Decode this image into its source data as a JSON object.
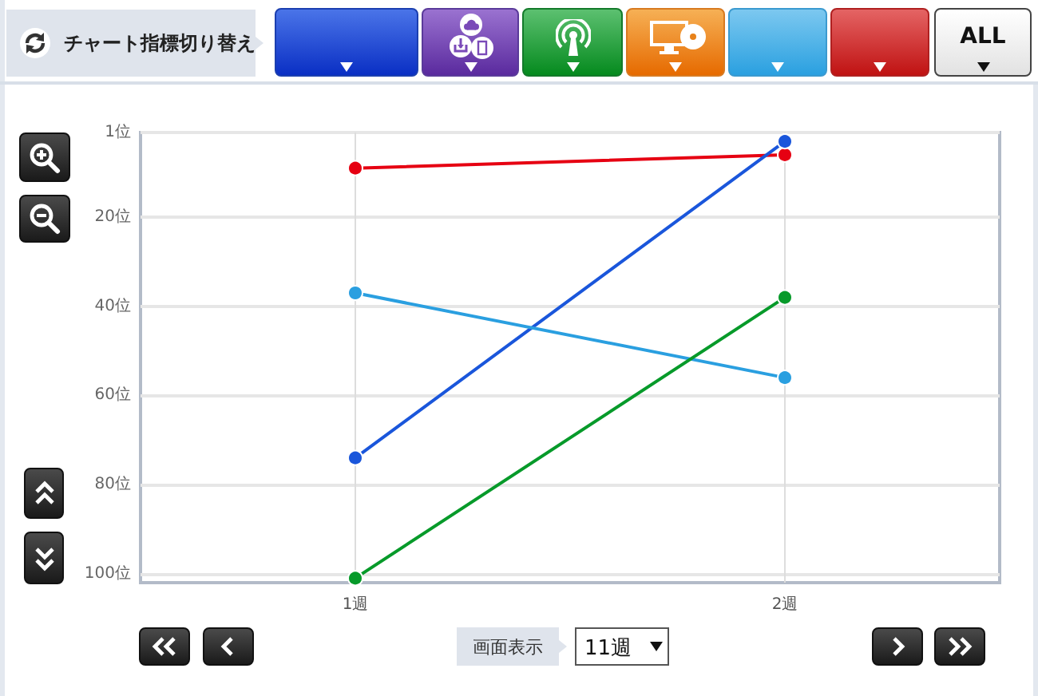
{
  "chart_data": {
    "type": "line",
    "categories": [
      "1週",
      "2週"
    ],
    "series": [
      {
        "color": "#e60012",
        "values": [
          9,
          6
        ]
      },
      {
        "color": "#1a56db",
        "values": [
          74,
          3
        ]
      },
      {
        "color": "#2a9fe0",
        "values": [
          37,
          56
        ]
      },
      {
        "color": "#079a2a",
        "values": [
          101,
          38
        ]
      }
    ],
    "ylim": [
      102,
      1
    ],
    "yticks": [
      {
        "value": 1,
        "label": "1位"
      },
      {
        "value": 20,
        "label": "20位"
      },
      {
        "value": 40,
        "label": "40位"
      },
      {
        "value": 60,
        "label": "60位"
      },
      {
        "value": 80,
        "label": "80位"
      },
      {
        "value": 100,
        "label": "100位"
      }
    ],
    "grid": true,
    "marker": "circle",
    "line_style": "solid",
    "annotations": [
      "チャート指標切り替え",
      "ALL",
      "画面表示",
      "11週"
    ]
  }
}
